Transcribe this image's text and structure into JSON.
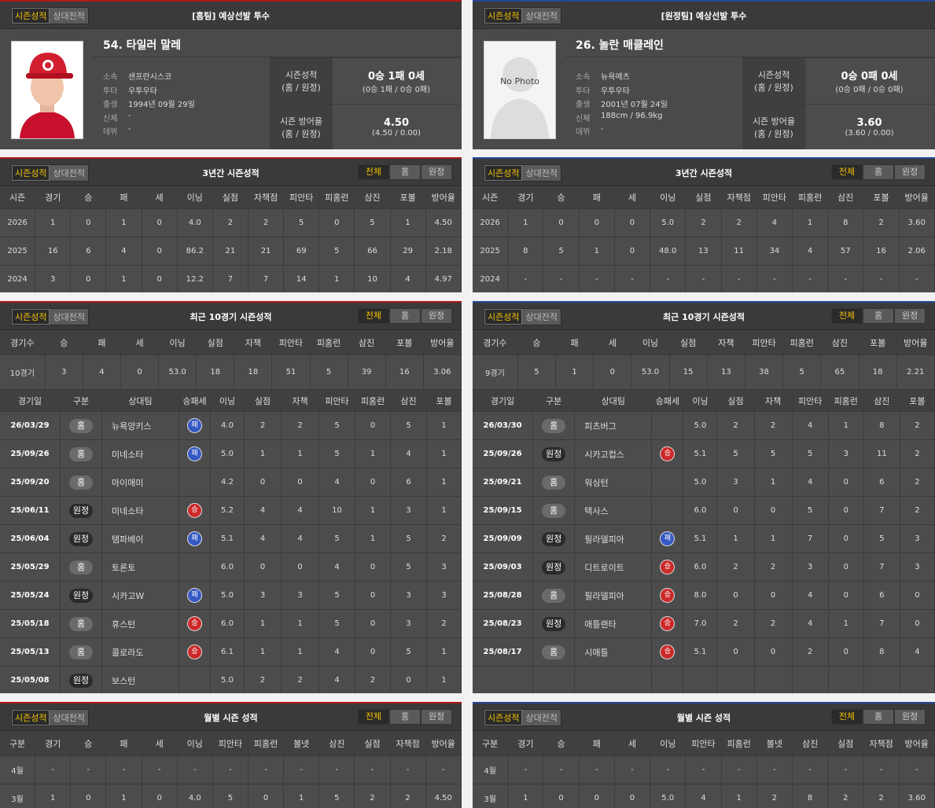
{
  "panels": [
    {
      "profile": {
        "tabs": [
          "시즌성적",
          "상대전적"
        ],
        "title": "[홈팀] 예상선발 투수",
        "name": "54. 타일러 말레",
        "info": [
          {
            "label": "소속",
            "value": "샌프란시스코"
          },
          {
            "label": "투타",
            "value": "우투우타"
          },
          {
            "label": "출생",
            "value": "1994년 09월 29일"
          },
          {
            "label": "신체",
            "value": "-"
          },
          {
            "label": "데뷔",
            "value": "-"
          }
        ],
        "stats": [
          {
            "label": "시즌성적",
            "sub": "(홈 / 원정)",
            "value": "0승 1패 0세",
            "detail": "(0승 1패 / 0승 0패)"
          },
          {
            "label": "시즌 방어율",
            "sub": "(홈 / 원정)",
            "value": "4.50",
            "detail": "(4.50 / 0.00)"
          }
        ]
      },
      "season": {
        "tabs": [
          "시즌성적",
          "상대전적"
        ],
        "title": "3년간 시즌성적",
        "filters": [
          "전체",
          "홈",
          "원정"
        ],
        "columns": [
          "시즌",
          "경기",
          "승",
          "패",
          "세",
          "이닝",
          "실점",
          "자책점",
          "피안타",
          "피홈런",
          "삼진",
          "포볼",
          "방어율"
        ],
        "rows": [
          [
            "2026",
            "1",
            "0",
            "1",
            "0",
            "4.0",
            "2",
            "2",
            "5",
            "0",
            "5",
            "1",
            "4.50"
          ],
          [
            "2025",
            "16",
            "6",
            "4",
            "0",
            "86.2",
            "21",
            "21",
            "69",
            "5",
            "66",
            "29",
            "2.18"
          ],
          [
            "2024",
            "3",
            "0",
            "1",
            "0",
            "12.2",
            "7",
            "7",
            "14",
            "1",
            "10",
            "4",
            "4.97"
          ]
        ]
      },
      "recent": {
        "tabs": [
          "시즌성적",
          "상대전적"
        ],
        "title": "최근 10경기 시즌성적",
        "filters": [
          "전체",
          "홈",
          "원정"
        ],
        "summary_columns": [
          "경기수",
          "승",
          "패",
          "세",
          "이닝",
          "실점",
          "자책",
          "피안타",
          "피홈런",
          "삼진",
          "포볼",
          "방어율"
        ],
        "summary_row": [
          "10경기",
          "3",
          "4",
          "0",
          "53.0",
          "18",
          "18",
          "51",
          "5",
          "39",
          "16",
          "3.06"
        ],
        "columns": [
          "경기일",
          "구분",
          "상대팀",
          "승패세",
          "이닝",
          "실점",
          "자책",
          "피안타",
          "피홈런",
          "삼진",
          "포볼"
        ],
        "games": [
          [
            "26/03/29",
            "홈",
            "뉴욕양키스",
            "패",
            "4.0",
            "2",
            "2",
            "5",
            "0",
            "5",
            "1"
          ],
          [
            "25/09/26",
            "홈",
            "미네소타",
            "패",
            "5.0",
            "1",
            "1",
            "5",
            "1",
            "4",
            "1"
          ],
          [
            "25/09/20",
            "홈",
            "마이애미",
            null,
            "4.2",
            "0",
            "0",
            "4",
            "0",
            "6",
            "1"
          ],
          [
            "25/06/11",
            "원정",
            "미네소타",
            "승",
            "5.2",
            "4",
            "4",
            "10",
            "1",
            "3",
            "1"
          ],
          [
            "25/06/04",
            "원정",
            "탬파베이",
            "패",
            "5.1",
            "4",
            "4",
            "5",
            "1",
            "5",
            "2"
          ],
          [
            "25/05/29",
            "홈",
            "토론토",
            null,
            "6.0",
            "0",
            "0",
            "4",
            "0",
            "5",
            "3"
          ],
          [
            "25/05/24",
            "원정",
            "시카고W",
            "패",
            "5.0",
            "3",
            "3",
            "5",
            "0",
            "3",
            "3"
          ],
          [
            "25/05/18",
            "홈",
            "휴스턴",
            "승",
            "6.0",
            "1",
            "1",
            "5",
            "0",
            "3",
            "2"
          ],
          [
            "25/05/13",
            "홈",
            "콜로라도",
            "승",
            "6.1",
            "1",
            "1",
            "4",
            "0",
            "5",
            "1"
          ],
          [
            "25/05/08",
            "원정",
            "보스턴",
            null,
            "5.0",
            "2",
            "2",
            "4",
            "2",
            "0",
            "1"
          ]
        ]
      },
      "monthly": {
        "tabs": [
          "시즌성적",
          "상대전적"
        ],
        "title": "월별 시즌 성적",
        "filters": [
          "전체",
          "홈",
          "원정"
        ],
        "columns": [
          "구분",
          "경기",
          "승",
          "패",
          "세",
          "이닝",
          "피안타",
          "피홈런",
          "볼넷",
          "삼진",
          "실점",
          "자책점",
          "방어율"
        ],
        "rows": [
          [
            "4월",
            "-",
            "-",
            "-",
            "-",
            "-",
            "-",
            "-",
            "-",
            "-",
            "-",
            "-",
            "-"
          ],
          [
            "3월",
            "1",
            "0",
            "1",
            "0",
            "4.0",
            "5",
            "0",
            "1",
            "5",
            "2",
            "2",
            "4.50"
          ]
        ]
      }
    },
    {
      "profile": {
        "tabs": [
          "시즌성적",
          "상대전적"
        ],
        "title": "[원정팀] 예상선발 투수",
        "name": "26. 놀란 매클레인",
        "photo_text": "No Photo",
        "info": [
          {
            "label": "소속",
            "value": "뉴욕메츠"
          },
          {
            "label": "투타",
            "value": "우투우타"
          },
          {
            "label": "출생",
            "value": "2001년 07월 24일"
          },
          {
            "label": "신체",
            "value": "188cm / 96.9kg"
          },
          {
            "label": "데뷔",
            "value": "-"
          }
        ],
        "stats": [
          {
            "label": "시즌성적",
            "sub": "(홈 / 원정)",
            "value": "0승 0패 0세",
            "detail": "(0승 0패 / 0승 0패)"
          },
          {
            "label": "시즌 방어율",
            "sub": "(홈 / 원정)",
            "value": "3.60",
            "detail": "(3.60 / 0.00)"
          }
        ]
      },
      "season": {
        "tabs": [
          "시즌성적",
          "상대전적"
        ],
        "title": "3년간 시즌성적",
        "filters": [
          "전체",
          "홈",
          "원정"
        ],
        "columns": [
          "시즌",
          "경기",
          "승",
          "패",
          "세",
          "이닝",
          "실점",
          "자책점",
          "피안타",
          "피홈런",
          "삼진",
          "포볼",
          "방어율"
        ],
        "rows": [
          [
            "2026",
            "1",
            "0",
            "0",
            "0",
            "5.0",
            "2",
            "2",
            "4",
            "1",
            "8",
            "2",
            "3.60"
          ],
          [
            "2025",
            "8",
            "5",
            "1",
            "0",
            "48.0",
            "13",
            "11",
            "34",
            "4",
            "57",
            "16",
            "2.06"
          ],
          [
            "2024",
            "-",
            "-",
            "-",
            "-",
            "-",
            "-",
            "-",
            "-",
            "-",
            "-",
            "-",
            "-"
          ]
        ]
      },
      "recent": {
        "tabs": [
          "시즌성적",
          "상대전적"
        ],
        "title": "최근 10경기 시즌성적",
        "filters": [
          "전체",
          "홈",
          "원정"
        ],
        "summary_columns": [
          "경기수",
          "승",
          "패",
          "세",
          "이닝",
          "실점",
          "자책",
          "피안타",
          "피홈런",
          "삼진",
          "포볼",
          "방어율"
        ],
        "summary_row": [
          "9경기",
          "5",
          "1",
          "0",
          "53.0",
          "15",
          "13",
          "38",
          "5",
          "65",
          "18",
          "2.21"
        ],
        "columns": [
          "경기일",
          "구분",
          "상대팀",
          "승패세",
          "이닝",
          "실점",
          "자책",
          "피안타",
          "피홈런",
          "삼진",
          "포볼"
        ],
        "games": [
          [
            "26/03/30",
            "홈",
            "피츠버그",
            null,
            "5.0",
            "2",
            "2",
            "4",
            "1",
            "8",
            "2"
          ],
          [
            "25/09/26",
            "원정",
            "시카고컵스",
            "승",
            "5.1",
            "5",
            "5",
            "5",
            "3",
            "11",
            "2"
          ],
          [
            "25/09/21",
            "홈",
            "워싱턴",
            null,
            "5.0",
            "3",
            "1",
            "4",
            "0",
            "6",
            "2"
          ],
          [
            "25/09/15",
            "홈",
            "텍사스",
            null,
            "6.0",
            "0",
            "0",
            "5",
            "0",
            "7",
            "2"
          ],
          [
            "25/09/09",
            "원정",
            "필라델피아",
            "패",
            "5.1",
            "1",
            "1",
            "7",
            "0",
            "5",
            "3"
          ],
          [
            "25/09/03",
            "원정",
            "디트로이트",
            "승",
            "6.0",
            "2",
            "2",
            "3",
            "0",
            "7",
            "3"
          ],
          [
            "25/08/28",
            "홈",
            "필라델피아",
            "승",
            "8.0",
            "0",
            "0",
            "4",
            "0",
            "6",
            "0"
          ],
          [
            "25/08/23",
            "원정",
            "애틀랜타",
            "승",
            "7.0",
            "2",
            "2",
            "4",
            "1",
            "7",
            "0"
          ],
          [
            "25/08/17",
            "홈",
            "시애틀",
            "승",
            "5.1",
            "0",
            "0",
            "2",
            "0",
            "8",
            "4"
          ]
        ]
      },
      "monthly": {
        "tabs": [
          "시즌성적",
          "상대전적"
        ],
        "title": "월별 시즌 성적",
        "filters": [
          "전체",
          "홈",
          "원정"
        ],
        "columns": [
          "구분",
          "경기",
          "승",
          "패",
          "세",
          "이닝",
          "피안타",
          "피홈런",
          "볼넷",
          "삼진",
          "실점",
          "자책점",
          "방어율"
        ],
        "rows": [
          [
            "4월",
            "-",
            "-",
            "-",
            "-",
            "-",
            "-",
            "-",
            "-",
            "-",
            "-",
            "-",
            "-"
          ],
          [
            "3월",
            "1",
            "0",
            "0",
            "0",
            "5.0",
            "4",
            "1",
            "2",
            "8",
            "2",
            "2",
            "3.60"
          ]
        ]
      }
    }
  ]
}
